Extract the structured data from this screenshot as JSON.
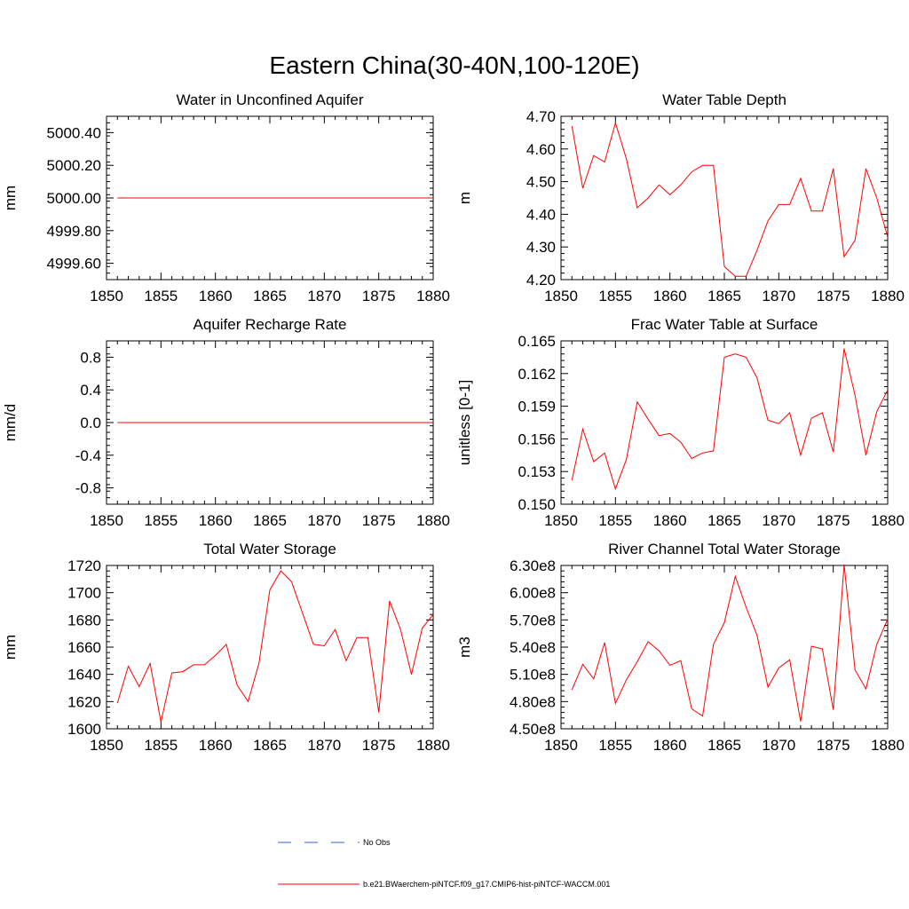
{
  "title": "Eastern China(30-40N,100-120E)",
  "series_color": "#ff0000",
  "legend": [
    {
      "label": "No Obs",
      "color": "#3b5bd6",
      "style": "dashed"
    },
    {
      "label": "b.e21.BWaerchem-piNTCF.f09_g17.CMIP6-hist-piNTCF-WACCM.001",
      "color": "#ff0000",
      "style": "solid"
    }
  ],
  "chart_data": [
    {
      "type": "line",
      "title": "Water in Unconfined Aquifer",
      "ylabel": "mm",
      "xlim": [
        1850,
        1880
      ],
      "ylim": [
        4999.5,
        5000.5
      ],
      "xticks": [
        1850,
        1855,
        1860,
        1865,
        1870,
        1875,
        1880
      ],
      "yticks": [
        4999.6,
        4999.8,
        5000.0,
        5000.2,
        5000.4
      ],
      "ytick_labels": [
        "4999.60",
        "4999.80",
        "5000.00",
        "5000.20",
        "5000.40"
      ],
      "x": [
        1851,
        1852,
        1853,
        1854,
        1855,
        1856,
        1857,
        1858,
        1859,
        1860,
        1861,
        1862,
        1863,
        1864,
        1865,
        1866,
        1867,
        1868,
        1869,
        1870,
        1871,
        1872,
        1873,
        1874,
        1875,
        1876,
        1877,
        1878,
        1879,
        1880
      ],
      "y": [
        5000,
        5000,
        5000,
        5000,
        5000,
        5000,
        5000,
        5000,
        5000,
        5000,
        5000,
        5000,
        5000,
        5000,
        5000,
        5000,
        5000,
        5000,
        5000,
        5000,
        5000,
        5000,
        5000,
        5000,
        5000,
        5000,
        5000,
        5000,
        5000,
        5000
      ]
    },
    {
      "type": "line",
      "title": "Water Table Depth",
      "ylabel": "m",
      "xlim": [
        1850,
        1880
      ],
      "ylim": [
        4.2,
        4.7
      ],
      "xticks": [
        1850,
        1855,
        1860,
        1865,
        1870,
        1875,
        1880
      ],
      "yticks": [
        4.2,
        4.3,
        4.4,
        4.5,
        4.6,
        4.7
      ],
      "ytick_labels": [
        "4.20",
        "4.30",
        "4.40",
        "4.50",
        "4.60",
        "4.70"
      ],
      "x": [
        1851,
        1852,
        1853,
        1854,
        1855,
        1856,
        1857,
        1858,
        1859,
        1860,
        1861,
        1862,
        1863,
        1864,
        1865,
        1866,
        1867,
        1868,
        1869,
        1870,
        1871,
        1872,
        1873,
        1874,
        1875,
        1876,
        1877,
        1878,
        1879,
        1880
      ],
      "y": [
        4.67,
        4.48,
        4.58,
        4.56,
        4.68,
        4.57,
        4.42,
        4.45,
        4.49,
        4.46,
        4.49,
        4.53,
        4.55,
        4.55,
        4.24,
        4.21,
        4.21,
        4.29,
        4.38,
        4.43,
        4.43,
        4.51,
        4.41,
        4.41,
        4.54,
        4.27,
        4.32,
        4.54,
        4.45,
        4.33
      ]
    },
    {
      "type": "line",
      "title": "Aquifer Recharge Rate",
      "ylabel": "mm/d",
      "xlim": [
        1850,
        1880
      ],
      "ylim": [
        -1.0,
        1.0
      ],
      "xticks": [
        1850,
        1855,
        1860,
        1865,
        1870,
        1875,
        1880
      ],
      "yticks": [
        -0.8,
        -0.4,
        0.0,
        0.4,
        0.8
      ],
      "ytick_labels": [
        "-0.8",
        "-0.4",
        "0.0",
        "0.4",
        "0.8"
      ],
      "x": [
        1851,
        1852,
        1853,
        1854,
        1855,
        1856,
        1857,
        1858,
        1859,
        1860,
        1861,
        1862,
        1863,
        1864,
        1865,
        1866,
        1867,
        1868,
        1869,
        1870,
        1871,
        1872,
        1873,
        1874,
        1875,
        1876,
        1877,
        1878,
        1879,
        1880
      ],
      "y": [
        0,
        0,
        0,
        0,
        0,
        0,
        0,
        0,
        0,
        0,
        0,
        0,
        0,
        0,
        0,
        0,
        0,
        0,
        0,
        0,
        0,
        0,
        0,
        0,
        0,
        0,
        0,
        0,
        0,
        0
      ]
    },
    {
      "type": "line",
      "title": "Frac Water Table at Surface",
      "ylabel": "unitless [0-1]",
      "xlim": [
        1850,
        1880
      ],
      "ylim": [
        0.15,
        0.165
      ],
      "xticks": [
        1850,
        1855,
        1860,
        1865,
        1870,
        1875,
        1880
      ],
      "yticks": [
        0.15,
        0.153,
        0.156,
        0.159,
        0.162,
        0.165
      ],
      "ytick_labels": [
        "0.150",
        "0.153",
        "0.156",
        "0.159",
        "0.162",
        "0.165"
      ],
      "x": [
        1851,
        1852,
        1853,
        1854,
        1855,
        1856,
        1857,
        1858,
        1859,
        1860,
        1861,
        1862,
        1863,
        1864,
        1865,
        1866,
        1867,
        1868,
        1869,
        1870,
        1871,
        1872,
        1873,
        1874,
        1875,
        1876,
        1877,
        1878,
        1879,
        1880
      ],
      "y": [
        0.1522,
        0.1569,
        0.1539,
        0.1547,
        0.1514,
        0.1541,
        0.1594,
        0.1578,
        0.1563,
        0.1565,
        0.1557,
        0.1542,
        0.1547,
        0.1549,
        0.1635,
        0.1638,
        0.1635,
        0.1616,
        0.1577,
        0.1574,
        0.1584,
        0.1545,
        0.1579,
        0.1584,
        0.1548,
        0.1643,
        0.16,
        0.1545,
        0.1585,
        0.1605
      ]
    },
    {
      "type": "line",
      "title": "Total Water Storage",
      "ylabel": "mm",
      "xlim": [
        1850,
        1880
      ],
      "ylim": [
        1600,
        1720
      ],
      "xticks": [
        1850,
        1855,
        1860,
        1865,
        1870,
        1875,
        1880
      ],
      "yticks": [
        1600,
        1620,
        1640,
        1660,
        1680,
        1700,
        1720
      ],
      "ytick_labels": [
        "1600",
        "1620",
        "1640",
        "1660",
        "1680",
        "1700",
        "1720"
      ],
      "x": [
        1851,
        1852,
        1853,
        1854,
        1855,
        1856,
        1857,
        1858,
        1859,
        1860,
        1861,
        1862,
        1863,
        1864,
        1865,
        1866,
        1867,
        1868,
        1869,
        1870,
        1871,
        1872,
        1873,
        1874,
        1875,
        1876,
        1877,
        1878,
        1879,
        1880
      ],
      "y": [
        1619,
        1646,
        1631,
        1648,
        1605,
        1641,
        1642,
        1647,
        1647,
        1654,
        1662,
        1632,
        1620,
        1648,
        1702,
        1716,
        1708,
        1685,
        1662,
        1661,
        1673,
        1650,
        1667,
        1667,
        1612,
        1694,
        1673,
        1640,
        1674,
        1684
      ]
    },
    {
      "type": "line",
      "title": "River Channel Total Water Storage",
      "ylabel": "m3",
      "xlim": [
        1850,
        1880
      ],
      "ylim": [
        450000000,
        630000000
      ],
      "xticks": [
        1850,
        1855,
        1860,
        1865,
        1870,
        1875,
        1880
      ],
      "yticks": [
        450000000,
        480000000,
        510000000,
        540000000,
        570000000,
        600000000,
        630000000
      ],
      "ytick_labels": [
        "4.50e8",
        "4.80e8",
        "5.10e8",
        "5.40e8",
        "5.70e8",
        "6.00e8",
        "6.30e8"
      ],
      "x": [
        1851,
        1852,
        1853,
        1854,
        1855,
        1856,
        1857,
        1858,
        1859,
        1860,
        1861,
        1862,
        1863,
        1864,
        1865,
        1866,
        1867,
        1868,
        1869,
        1870,
        1871,
        1872,
        1873,
        1874,
        1875,
        1876,
        1877,
        1878,
        1879,
        1880
      ],
      "y": [
        493000000,
        521000000,
        505000000,
        545000000,
        478000000,
        504000000,
        524000000,
        546000000,
        536000000,
        520000000,
        525000000,
        472000000,
        464000000,
        543000000,
        567000000,
        618000000,
        584000000,
        553000000,
        496000000,
        517000000,
        526000000,
        458000000,
        541000000,
        538000000,
        471000000,
        631000000,
        515000000,
        494000000,
        543000000,
        571000000
      ]
    }
  ]
}
